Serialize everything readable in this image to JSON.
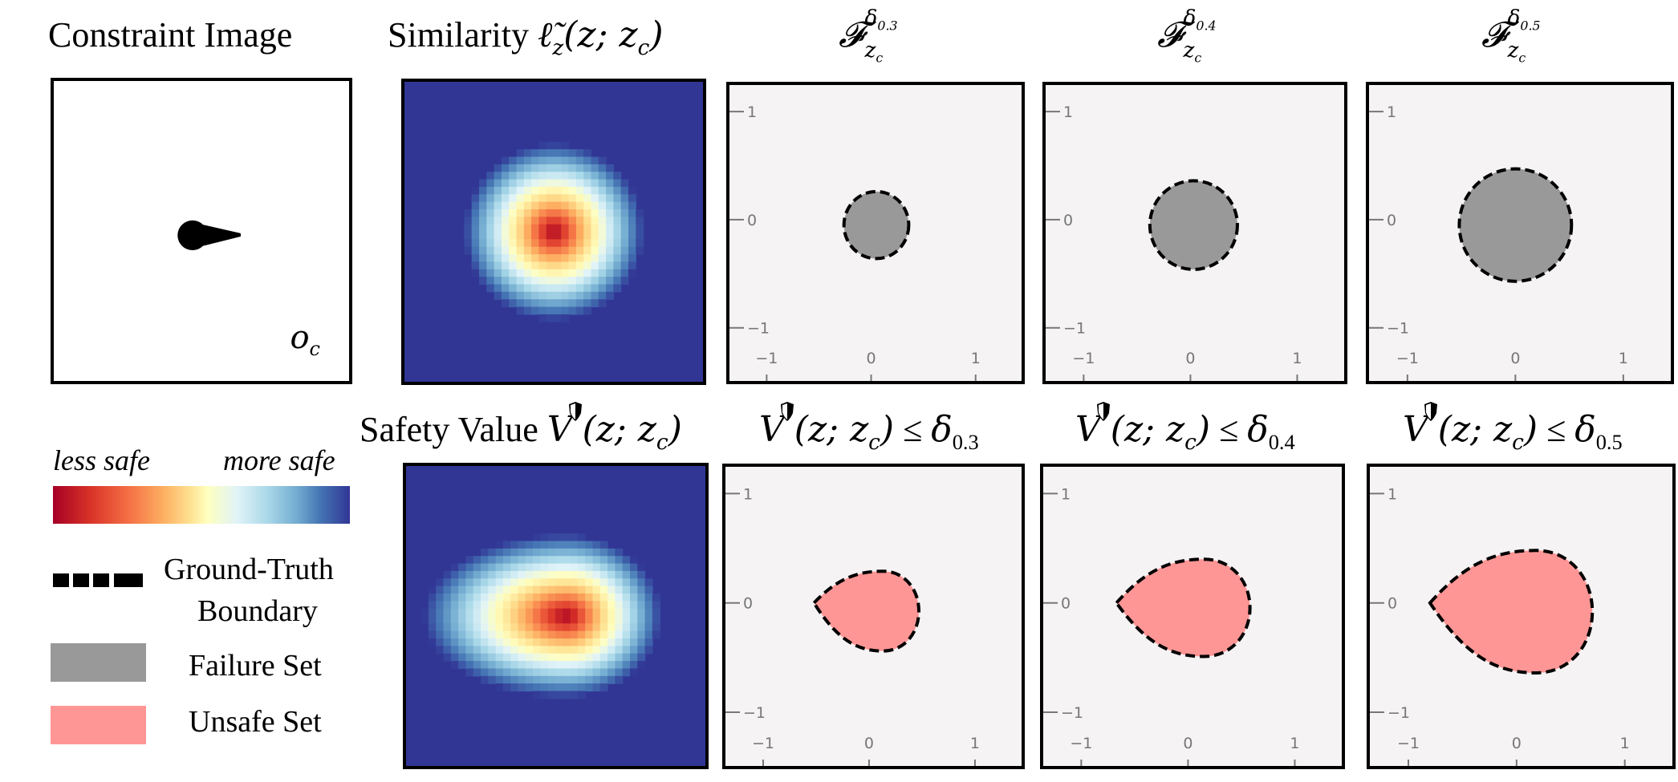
{
  "figure": {
    "row1": {
      "constraint_title": "Constraint Image",
      "similarity_title_text": "Similarity",
      "similarity_title_math": "ℓ̃",
      "similarity_title_sub": "z",
      "similarity_title_args": "(z; z",
      "similarity_title_args_sub": "c",
      "similarity_title_close": ")",
      "constraint_label": "o",
      "constraint_label_sub": "c",
      "failure_titles": [
        {
          "symbol": "𝓕",
          "sub": "z",
          "subsub": "c",
          "sup": "δ",
          "supsub": "0.3"
        },
        {
          "symbol": "𝓕",
          "sub": "z",
          "subsub": "c",
          "sup": "δ",
          "supsub": "0.4"
        },
        {
          "symbol": "𝓕",
          "sub": "z",
          "subsub": "c",
          "sup": "δ",
          "supsub": "0.5"
        }
      ]
    },
    "row2": {
      "safety_title_text": "Safety Value",
      "safety_title_math": "V",
      "safety_title_args": "(z; z",
      "safety_title_args_sub": "c",
      "safety_title_close": ")",
      "unsafe_titles": [
        {
          "v": "V",
          "args": "(z; z",
          "sub": "c",
          "close": ")",
          "leq": "≤",
          "delta": "δ",
          "delta_sub": "0.3"
        },
        {
          "v": "V",
          "args": "(z; z",
          "sub": "c",
          "close": ")",
          "leq": "≤",
          "delta": "δ",
          "delta_sub": "0.4"
        },
        {
          "v": "V",
          "args": "(z; z",
          "sub": "c",
          "close": ")",
          "leq": "≤",
          "delta": "δ",
          "delta_sub": "0.5"
        }
      ]
    },
    "legend": {
      "colorbar_left": "less safe",
      "colorbar_right": "more safe",
      "colormap": [
        "#a50026",
        "#d73027",
        "#f46d43",
        "#fdae61",
        "#fee090",
        "#ffffbf",
        "#e0f3f8",
        "#abd9e9",
        "#74add1",
        "#4575b4",
        "#313695"
      ],
      "boundary_label_line1": "Ground-Truth",
      "boundary_label_line2": "Boundary",
      "failure_label": "Failure Set",
      "unsafe_label": "Unsafe Set",
      "failure_color": "#999999",
      "unsafe_color": "#ff9696"
    },
    "icons": {
      "shield": "shield-icon"
    }
  },
  "chart_data": [
    {
      "type": "heatmap",
      "title": "Similarity ℓ̃z(z; zc)",
      "colormap": "RdYlBu",
      "peak": {
        "x": 0.0,
        "y": 0.0
      },
      "shape": "circular blob"
    },
    {
      "type": "heatmap",
      "title": "Safety Value V(z; zc)",
      "colormap": "RdYlBu",
      "peak": {
        "x": 0.1,
        "y": 0.0
      },
      "shape": "teardrop blob extending left"
    },
    {
      "type": "scatter",
      "title": "Fzc^δ0.3",
      "xlim": [
        -1.3,
        1.3
      ],
      "ylim": [
        -1.3,
        1.3
      ],
      "xticks": [
        "−1",
        "0",
        "1"
      ],
      "yticks": [
        "1",
        "0",
        "−1"
      ],
      "set": "failure",
      "boundary": {
        "shape": "circle",
        "cx": 0.05,
        "cy": -0.05,
        "r": 0.31
      }
    },
    {
      "type": "scatter",
      "title": "Fzc^δ0.4",
      "xlim": [
        -1.3,
        1.3
      ],
      "ylim": [
        -1.3,
        1.3
      ],
      "xticks": [
        "−1",
        "0",
        "1"
      ],
      "yticks": [
        "1",
        "0",
        "−1"
      ],
      "set": "failure",
      "boundary": {
        "shape": "circle",
        "cx": 0.03,
        "cy": -0.05,
        "r": 0.41
      }
    },
    {
      "type": "scatter",
      "title": "Fzc^δ0.5",
      "xlim": [
        -1.3,
        1.3
      ],
      "ylim": [
        -1.3,
        1.3
      ],
      "xticks": [
        "−1",
        "0",
        "1"
      ],
      "yticks": [
        "1",
        "0",
        "−1"
      ],
      "set": "failure",
      "boundary": {
        "shape": "circle",
        "cx": 0.0,
        "cy": -0.05,
        "r": 0.52
      }
    },
    {
      "type": "scatter",
      "title": "V(z; zc) ≤ δ0.3",
      "xlim": [
        -1.3,
        1.3
      ],
      "ylim": [
        -1.3,
        1.3
      ],
      "xticks": [
        "−1",
        "0",
        "1"
      ],
      "yticks": [
        "1",
        "0",
        "−1"
      ],
      "set": "unsafe",
      "boundary": {
        "shape": "teardrop",
        "tip_x": -0.52,
        "right_x": 0.47,
        "top_y": 0.29,
        "bottom_y": -0.44,
        "center_x": 0.13
      }
    },
    {
      "type": "scatter",
      "title": "V(z; zc) ≤ δ0.4",
      "xlim": [
        -1.3,
        1.3
      ],
      "ylim": [
        -1.3,
        1.3
      ],
      "xticks": [
        "−1",
        "0",
        "1"
      ],
      "yticks": [
        "1",
        "0",
        "−1"
      ],
      "set": "unsafe",
      "boundary": {
        "shape": "teardrop",
        "tip_x": -0.67,
        "right_x": 0.58,
        "top_y": 0.4,
        "bottom_y": -0.49,
        "center_x": 0.15
      }
    },
    {
      "type": "scatter",
      "title": "V(z; zc) ≤ δ0.5",
      "xlim": [
        -1.3,
        1.3
      ],
      "ylim": [
        -1.3,
        1.3
      ],
      "xticks": [
        "−1",
        "0",
        "1"
      ],
      "yticks": [
        "1",
        "0",
        "−1"
      ],
      "set": "unsafe",
      "boundary": {
        "shape": "teardrop",
        "tip_x": -0.8,
        "right_x": 0.7,
        "top_y": 0.48,
        "bottom_y": -0.64,
        "center_x": 0.18
      }
    }
  ]
}
